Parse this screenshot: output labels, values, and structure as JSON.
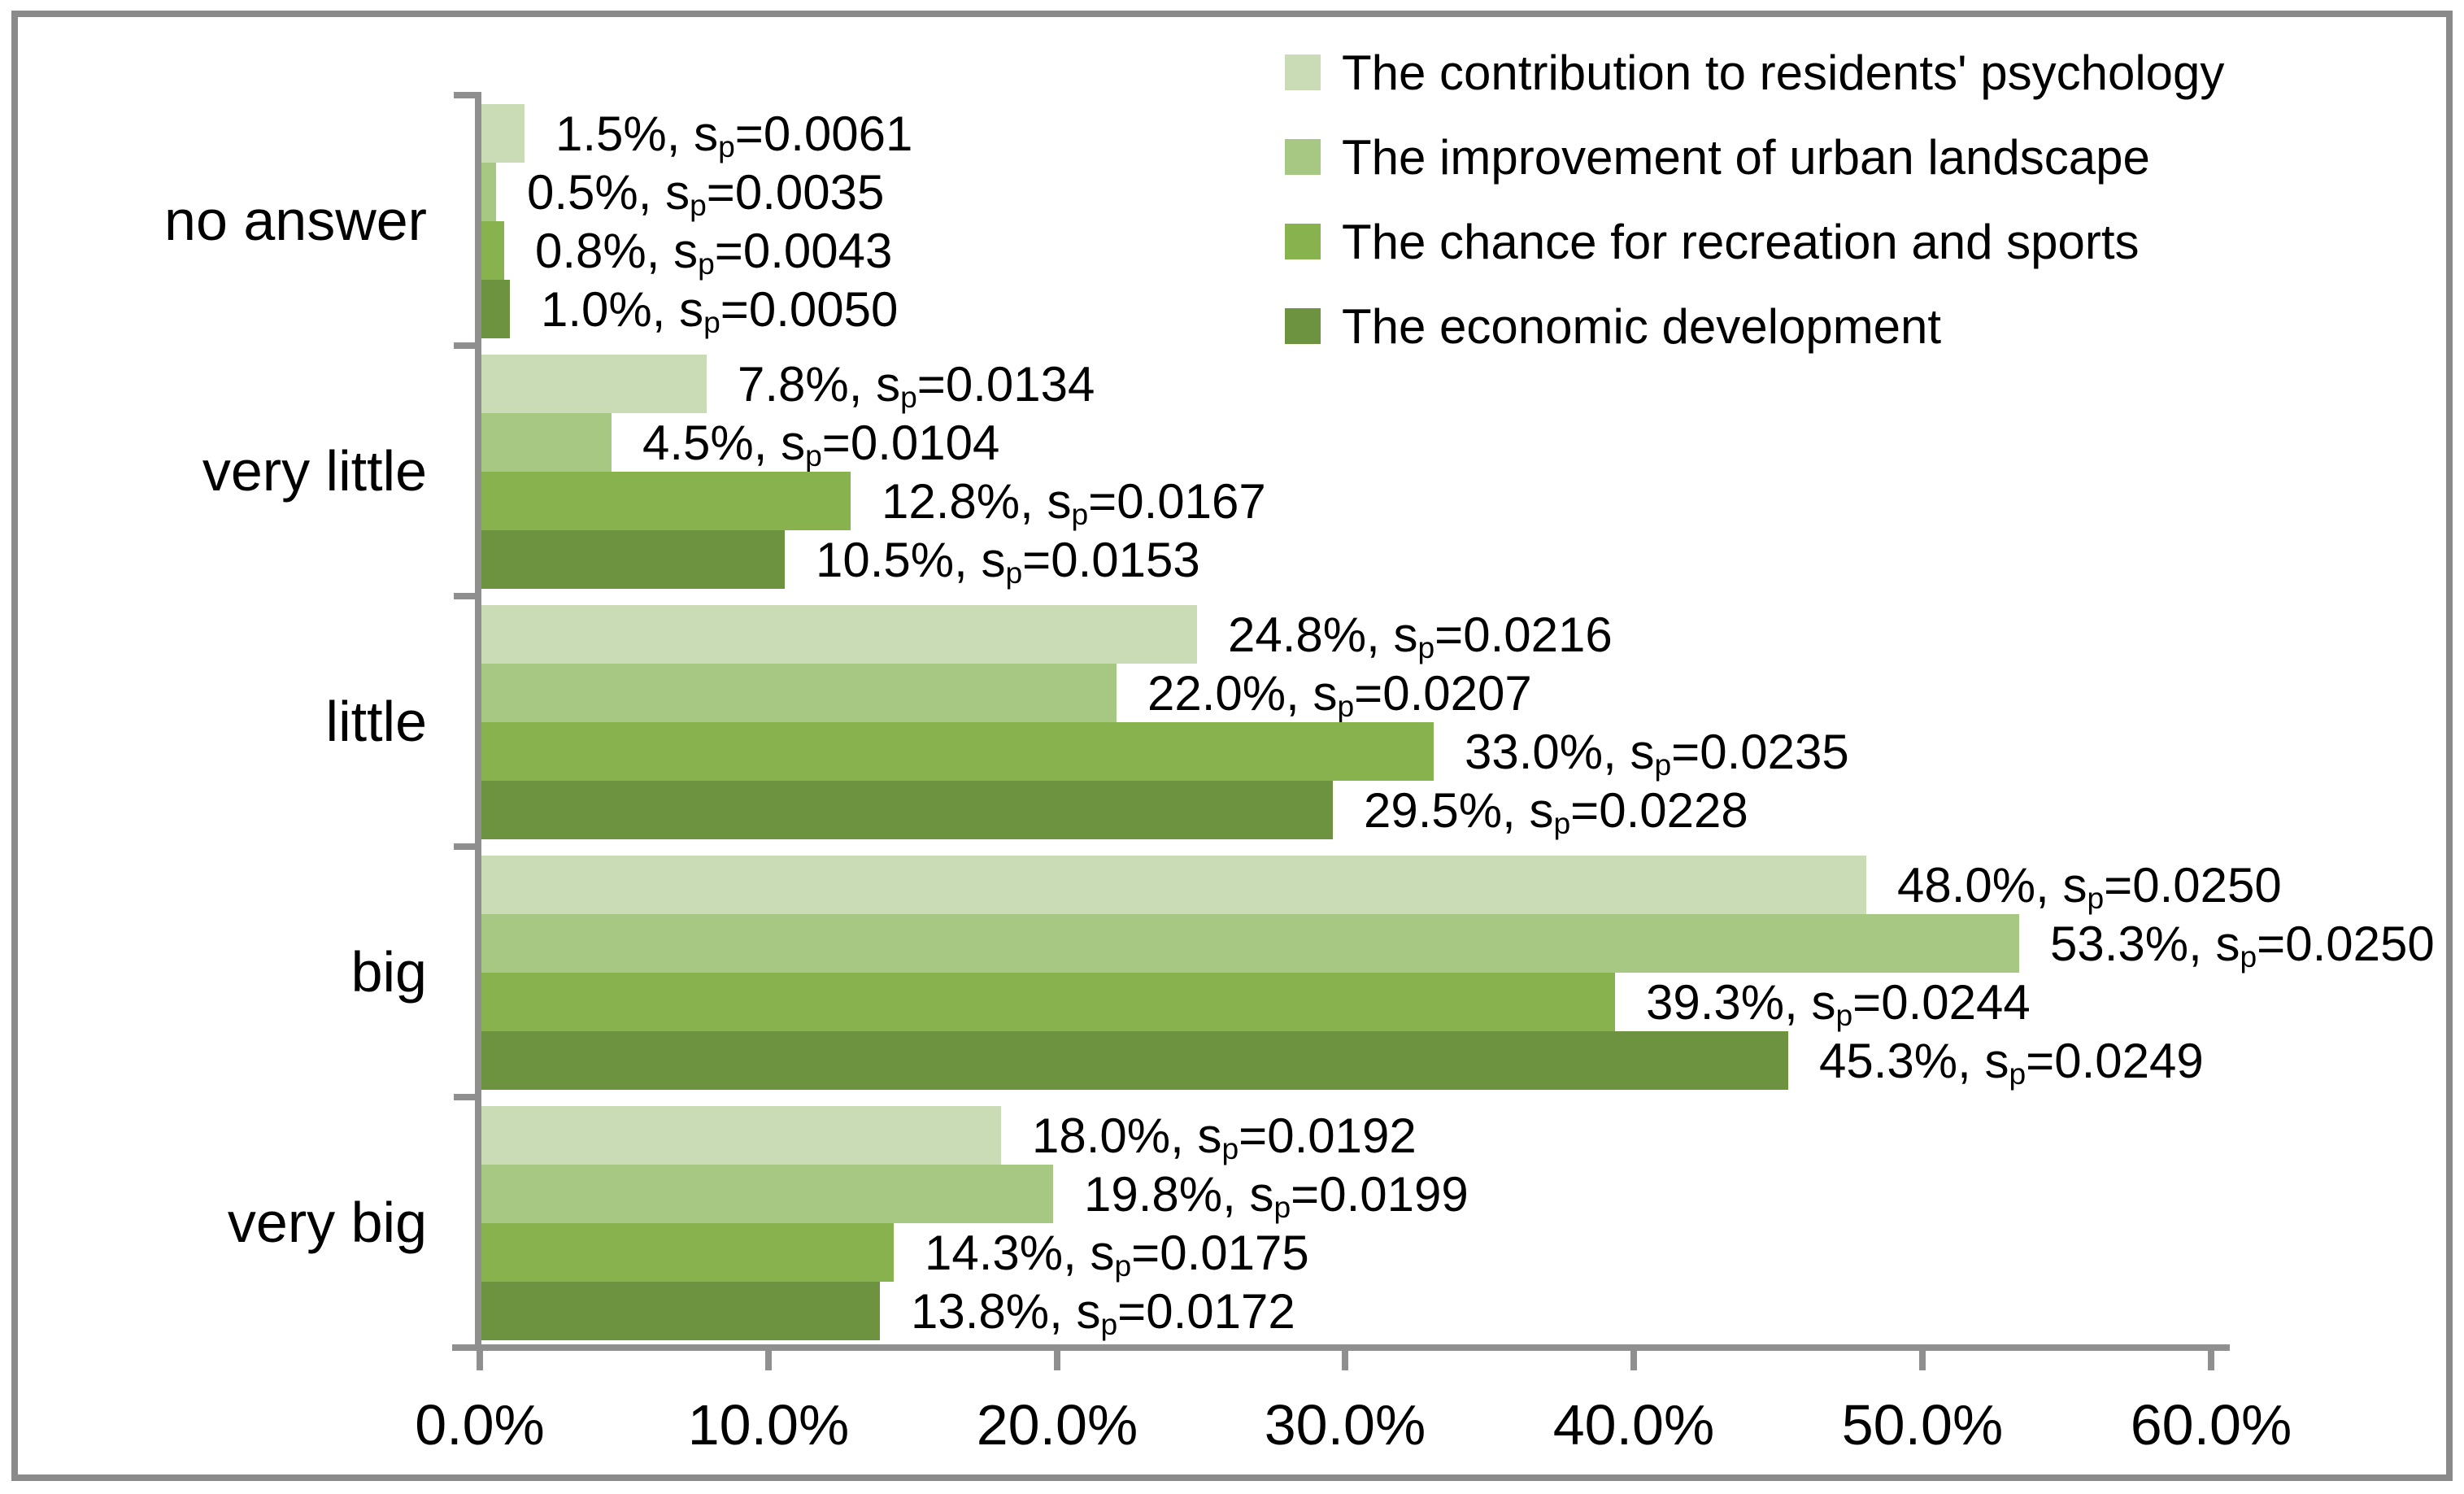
{
  "chart_data": {
    "type": "bar",
    "orientation": "horizontal",
    "title": "",
    "categories": [
      "no answer",
      "very little",
      "little",
      "big",
      "very big"
    ],
    "series": [
      {
        "name": "The contribution to residents' psychology",
        "color": "#cadcb5",
        "values": [
          1.5,
          7.8,
          24.8,
          48.0,
          18.0
        ],
        "value_labels": [
          "1.5%",
          "7.8%",
          "24.8%",
          "48.0%",
          "18.0%"
        ],
        "sp_values": [
          "0.0061",
          "0.0134",
          "0.0216",
          "0.0250",
          "0.0192"
        ]
      },
      {
        "name": "The improvement of urban landscape",
        "color": "#a7c882",
        "values": [
          0.5,
          4.5,
          22.0,
          53.3,
          19.8
        ],
        "value_labels": [
          "0.5%",
          "4.5%",
          "22.0%",
          "53.3%",
          "19.8%"
        ],
        "sp_values": [
          "0.0035",
          "0.0104",
          "0.0207",
          "0.0250",
          "0.0199"
        ]
      },
      {
        "name": "The chance for recreation and sports",
        "color": "#87b24e",
        "values": [
          0.8,
          12.8,
          33.0,
          39.3,
          14.3
        ],
        "value_labels": [
          "0.8%",
          "12.8%",
          "33.0%",
          "39.3%",
          "14.3%"
        ],
        "sp_values": [
          "0.0043",
          "0.0167",
          "0.0235",
          "0.0244",
          "0.0175"
        ]
      },
      {
        "name": "The economic development",
        "color": "#6d9340",
        "values": [
          1.0,
          10.5,
          29.5,
          45.3,
          13.8
        ],
        "value_labels": [
          "1.0%",
          "10.5%",
          "29.5%",
          "45.3%",
          "13.8%"
        ],
        "sp_values": [
          "0.0050",
          "0.0153",
          "0.0228",
          "0.0249",
          "0.0172"
        ]
      }
    ],
    "label_format": {
      "separator": ", ",
      "sp_symbol": "s",
      "sp_subscript": "p",
      "equals": "="
    },
    "x_axis": {
      "tick_labels": [
        "0.0%",
        "10.0%",
        "20.0%",
        "30.0%",
        "40.0%",
        "50.0%",
        "60.0%"
      ],
      "tick_values": [
        0,
        10,
        20,
        30,
        40,
        50,
        60
      ],
      "min": 0,
      "max": 60
    },
    "grid": false,
    "legend_position": "top-right"
  },
  "styles": {
    "axis_color": "#8f8f8f",
    "border_color": "#8a8a8a",
    "background": "#ffffff",
    "text_color": "#000000"
  }
}
